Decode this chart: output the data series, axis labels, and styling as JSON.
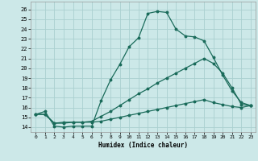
{
  "title": "",
  "xlabel": "Humidex (Indice chaleur)",
  "xlim": [
    -0.5,
    23.5
  ],
  "ylim": [
    13.5,
    26.8
  ],
  "xticks": [
    0,
    1,
    2,
    3,
    4,
    5,
    6,
    7,
    8,
    9,
    10,
    11,
    12,
    13,
    14,
    15,
    16,
    17,
    18,
    19,
    20,
    21,
    22,
    23
  ],
  "yticks": [
    14,
    15,
    16,
    17,
    18,
    19,
    20,
    21,
    22,
    23,
    24,
    25,
    26
  ],
  "background_color": "#cce8e8",
  "grid_color": "#aad0d0",
  "line_color": "#1a6b5a",
  "line1_x": [
    0,
    1,
    2,
    3,
    4,
    5,
    6,
    7,
    8,
    9,
    10,
    11,
    12,
    13,
    14,
    15,
    16,
    17,
    18,
    19,
    20,
    21,
    22,
    23
  ],
  "line1_y": [
    15.3,
    15.6,
    14.1,
    14.0,
    14.1,
    14.1,
    14.1,
    16.7,
    18.8,
    20.4,
    22.2,
    23.1,
    25.6,
    25.8,
    25.7,
    24.0,
    23.3,
    23.2,
    22.8,
    21.1,
    19.3,
    17.7,
    16.5,
    16.2
  ],
  "line2_x": [
    0,
    1,
    2,
    3,
    4,
    5,
    6,
    7,
    8,
    9,
    10,
    11,
    12,
    13,
    14,
    15,
    16,
    17,
    18,
    19,
    20,
    21,
    22,
    23
  ],
  "line2_y": [
    15.3,
    15.3,
    14.4,
    14.5,
    14.5,
    14.5,
    14.6,
    15.1,
    15.6,
    16.2,
    16.8,
    17.4,
    17.9,
    18.5,
    19.0,
    19.5,
    20.0,
    20.5,
    21.0,
    20.5,
    19.5,
    18.0,
    16.3,
    16.2
  ],
  "line3_x": [
    0,
    1,
    2,
    3,
    4,
    5,
    6,
    7,
    8,
    9,
    10,
    11,
    12,
    13,
    14,
    15,
    16,
    17,
    18,
    19,
    20,
    21,
    22,
    23
  ],
  "line3_y": [
    15.3,
    15.3,
    14.4,
    14.4,
    14.5,
    14.5,
    14.5,
    14.6,
    14.8,
    15.0,
    15.2,
    15.4,
    15.6,
    15.8,
    16.0,
    16.2,
    16.4,
    16.6,
    16.8,
    16.5,
    16.3,
    16.1,
    16.0,
    16.2
  ]
}
